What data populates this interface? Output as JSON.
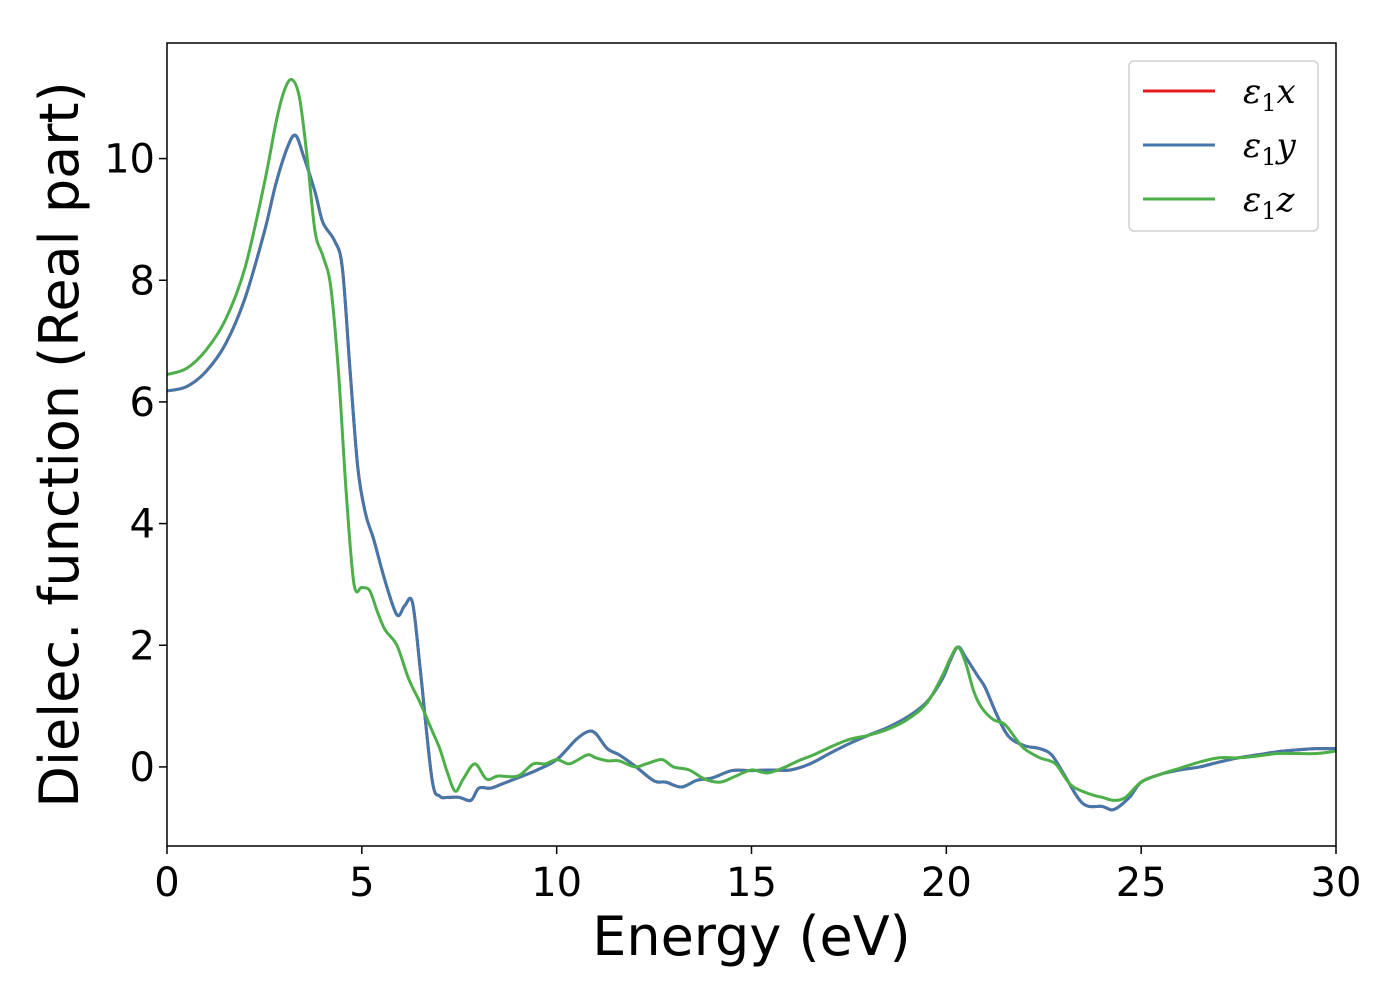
{
  "chart_data": {
    "type": "line",
    "xlabel": "Energy (eV)",
    "ylabel": "Dielec. function (Real part)",
    "xlim": [
      0,
      30
    ],
    "ylim": [
      -1.3,
      11.9
    ],
    "xticks": [
      0,
      5,
      10,
      15,
      20,
      25,
      30
    ],
    "yticks": [
      0,
      2,
      4,
      6,
      8,
      10
    ],
    "grid": false,
    "legend_position": "top-right",
    "series": [
      {
        "name": "ε1x",
        "legend_base": "ε",
        "legend_sub": "1",
        "legend_tail": "x",
        "color": "#e41a1c",
        "x": [
          0,
          0.5,
          1.0,
          1.5,
          2.0,
          2.5,
          2.8,
          3.1,
          3.3,
          3.5,
          3.8,
          4.0,
          4.3,
          4.5,
          4.7,
          4.9,
          5.1,
          5.3,
          5.6,
          5.9,
          6.1,
          6.3,
          6.5,
          6.8,
          7.0,
          7.2,
          7.5,
          7.8,
          8.0,
          8.3,
          8.6,
          9.0,
          9.5,
          10.0,
          10.5,
          10.8,
          11.0,
          11.3,
          11.6,
          12.0,
          12.5,
          12.8,
          13.2,
          13.6,
          14.0,
          14.5,
          15.0,
          15.5,
          16.0,
          16.5,
          17.0,
          17.5,
          18.0,
          18.5,
          19.0,
          19.5,
          19.9,
          20.1,
          20.3,
          20.5,
          20.8,
          21.0,
          21.3,
          21.6,
          22.0,
          22.4,
          22.7,
          23.0,
          23.5,
          24.0,
          24.3,
          24.7,
          25.0,
          25.5,
          26.0,
          26.5,
          27.0,
          27.5,
          28.0,
          28.5,
          29.0,
          29.5,
          30.0
        ],
        "y": [
          6.18,
          6.25,
          6.5,
          6.95,
          7.7,
          8.8,
          9.6,
          10.2,
          10.38,
          10.05,
          9.45,
          8.95,
          8.65,
          8.2,
          6.5,
          4.9,
          4.15,
          3.75,
          3.05,
          2.5,
          2.65,
          2.7,
          1.6,
          -0.2,
          -0.48,
          -0.5,
          -0.5,
          -0.55,
          -0.35,
          -0.35,
          -0.28,
          -0.18,
          -0.05,
          0.12,
          0.45,
          0.58,
          0.55,
          0.3,
          0.2,
          0.02,
          -0.23,
          -0.25,
          -0.33,
          -0.22,
          -0.18,
          -0.06,
          -0.06,
          -0.05,
          -0.05,
          0.05,
          0.22,
          0.38,
          0.52,
          0.65,
          0.82,
          1.07,
          1.45,
          1.75,
          1.97,
          1.8,
          1.5,
          1.3,
          0.85,
          0.5,
          0.35,
          0.3,
          0.2,
          -0.1,
          -0.6,
          -0.65,
          -0.7,
          -0.5,
          -0.25,
          -0.12,
          -0.05,
          0.0,
          0.08,
          0.15,
          0.2,
          0.25,
          0.28,
          0.3,
          0.3
        ]
      },
      {
        "name": "ε1y",
        "legend_base": "ε",
        "legend_sub": "1",
        "legend_tail": "y",
        "color": "#4477aa",
        "x": [
          0,
          0.5,
          1.0,
          1.5,
          2.0,
          2.5,
          2.8,
          3.1,
          3.3,
          3.5,
          3.8,
          4.0,
          4.3,
          4.5,
          4.7,
          4.9,
          5.1,
          5.3,
          5.6,
          5.9,
          6.1,
          6.3,
          6.5,
          6.8,
          7.0,
          7.2,
          7.5,
          7.8,
          8.0,
          8.3,
          8.6,
          9.0,
          9.5,
          10.0,
          10.5,
          10.8,
          11.0,
          11.3,
          11.6,
          12.0,
          12.5,
          12.8,
          13.2,
          13.6,
          14.0,
          14.5,
          15.0,
          15.5,
          16.0,
          16.5,
          17.0,
          17.5,
          18.0,
          18.5,
          19.0,
          19.5,
          19.9,
          20.1,
          20.3,
          20.5,
          20.8,
          21.0,
          21.3,
          21.6,
          22.0,
          22.4,
          22.7,
          23.0,
          23.5,
          24.0,
          24.3,
          24.7,
          25.0,
          25.5,
          26.0,
          26.5,
          27.0,
          27.5,
          28.0,
          28.5,
          29.0,
          29.5,
          30.0
        ],
        "y": [
          6.18,
          6.25,
          6.5,
          6.95,
          7.7,
          8.8,
          9.6,
          10.2,
          10.38,
          10.05,
          9.45,
          8.95,
          8.65,
          8.2,
          6.5,
          4.9,
          4.15,
          3.75,
          3.05,
          2.5,
          2.65,
          2.7,
          1.6,
          -0.2,
          -0.48,
          -0.5,
          -0.5,
          -0.55,
          -0.35,
          -0.35,
          -0.28,
          -0.18,
          -0.05,
          0.12,
          0.45,
          0.58,
          0.55,
          0.3,
          0.2,
          0.02,
          -0.23,
          -0.25,
          -0.33,
          -0.22,
          -0.18,
          -0.06,
          -0.06,
          -0.05,
          -0.05,
          0.05,
          0.22,
          0.38,
          0.52,
          0.65,
          0.82,
          1.07,
          1.45,
          1.75,
          1.97,
          1.8,
          1.5,
          1.3,
          0.85,
          0.5,
          0.35,
          0.3,
          0.2,
          -0.1,
          -0.6,
          -0.65,
          -0.7,
          -0.5,
          -0.25,
          -0.12,
          -0.05,
          0.0,
          0.08,
          0.15,
          0.2,
          0.25,
          0.28,
          0.3,
          0.3
        ]
      },
      {
        "name": "ε1z",
        "legend_base": "ε",
        "legend_sub": "1",
        "legend_tail": "z",
        "color": "#4daf4a",
        "x": [
          0,
          0.5,
          1.0,
          1.5,
          2.0,
          2.5,
          2.8,
          3.0,
          3.2,
          3.4,
          3.6,
          3.8,
          4.0,
          4.2,
          4.4,
          4.6,
          4.8,
          5.0,
          5.2,
          5.4,
          5.6,
          5.9,
          6.2,
          6.5,
          6.8,
          7.0,
          7.2,
          7.4,
          7.6,
          7.9,
          8.2,
          8.5,
          9.0,
          9.4,
          9.7,
          10.0,
          10.3,
          10.5,
          10.8,
          11.0,
          11.3,
          11.6,
          12.0,
          12.3,
          12.7,
          13.0,
          13.4,
          13.8,
          14.2,
          14.6,
          15.0,
          15.4,
          15.8,
          16.2,
          16.6,
          17.0,
          17.5,
          18.0,
          18.5,
          19.0,
          19.5,
          19.9,
          20.1,
          20.3,
          20.5,
          20.7,
          20.9,
          21.2,
          21.5,
          21.8,
          22.0,
          22.4,
          22.8,
          23.2,
          23.7,
          24.0,
          24.3,
          24.6,
          25.0,
          25.5,
          26.0,
          26.5,
          27.0,
          27.5,
          28.0,
          28.5,
          29.0,
          29.5,
          30.0
        ],
        "y": [
          6.45,
          6.55,
          6.85,
          7.35,
          8.2,
          9.6,
          10.6,
          11.1,
          11.3,
          11.0,
          10.0,
          8.8,
          8.4,
          7.9,
          6.5,
          4.5,
          3.0,
          2.95,
          2.9,
          2.55,
          2.25,
          2.0,
          1.45,
          1.05,
          0.6,
          0.3,
          -0.1,
          -0.4,
          -0.2,
          0.05,
          -0.2,
          -0.15,
          -0.15,
          0.05,
          0.05,
          0.12,
          0.05,
          0.1,
          0.2,
          0.15,
          0.1,
          0.1,
          0.0,
          0.05,
          0.12,
          0.0,
          -0.05,
          -0.2,
          -0.25,
          -0.15,
          -0.05,
          -0.1,
          -0.02,
          0.1,
          0.2,
          0.32,
          0.45,
          0.52,
          0.62,
          0.78,
          1.05,
          1.5,
          1.78,
          1.97,
          1.7,
          1.25,
          0.98,
          0.78,
          0.7,
          0.45,
          0.3,
          0.15,
          0.05,
          -0.3,
          -0.45,
          -0.5,
          -0.55,
          -0.5,
          -0.25,
          -0.12,
          -0.02,
          0.08,
          0.15,
          0.15,
          0.18,
          0.22,
          0.22,
          0.22,
          0.26
        ]
      }
    ]
  }
}
